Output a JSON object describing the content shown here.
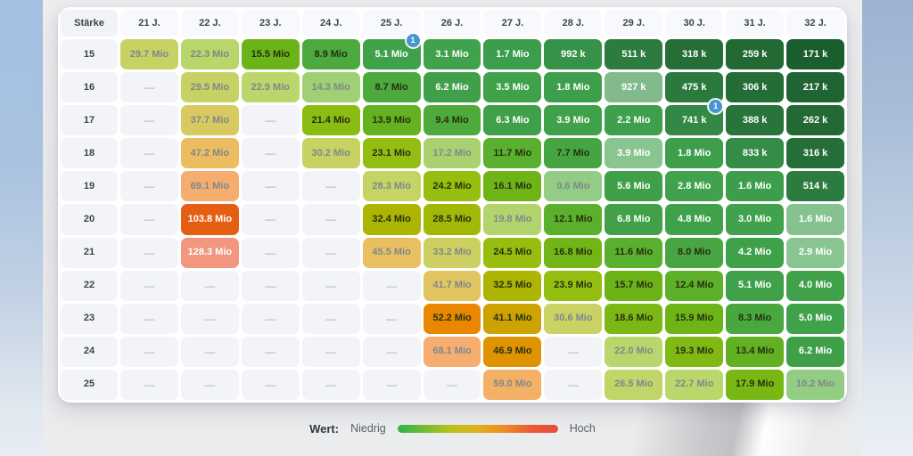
{
  "chart_data": {
    "type": "heatmap",
    "corner_label": "Stärke",
    "columns": [
      "21 J.",
      "22 J.",
      "23 J.",
      "24 J.",
      "25 J.",
      "26 J.",
      "27 J.",
      "28 J.",
      "29 J.",
      "30 J.",
      "31 J.",
      "32 J."
    ],
    "empty_marker": "—",
    "badge_color": "#4795d1",
    "rows": [
      {
        "strength": "15",
        "cells": [
          {
            "v": "29.7 Mio",
            "faded": true
          },
          {
            "v": "22.3 Mio",
            "faded": true
          },
          {
            "v": "15.5 Mio"
          },
          {
            "v": "8.9 Mio"
          },
          {
            "v": "5.1 Mio",
            "badge": "1"
          },
          {
            "v": "3.1 Mio"
          },
          {
            "v": "1.7 Mio"
          },
          {
            "v": "992 k"
          },
          {
            "v": "511 k"
          },
          {
            "v": "318 k"
          },
          {
            "v": "259 k"
          },
          {
            "v": "171 k"
          }
        ]
      },
      {
        "strength": "16",
        "cells": [
          {
            "v": "—"
          },
          {
            "v": "29.5 Mio",
            "faded": true
          },
          {
            "v": "22.9 Mio",
            "faded": true
          },
          {
            "v": "14.3 Mio",
            "faded": true
          },
          {
            "v": "8.7 Mio"
          },
          {
            "v": "6.2 Mio"
          },
          {
            "v": "3.5 Mio"
          },
          {
            "v": "1.8 Mio"
          },
          {
            "v": "927 k",
            "faded": true
          },
          {
            "v": "475 k"
          },
          {
            "v": "306 k"
          },
          {
            "v": "217 k"
          }
        ]
      },
      {
        "strength": "17",
        "cells": [
          {
            "v": "—"
          },
          {
            "v": "37.7 Mio",
            "faded": true
          },
          {
            "v": "—"
          },
          {
            "v": "21.4 Mio"
          },
          {
            "v": "13.9 Mio"
          },
          {
            "v": "9.4 Mio"
          },
          {
            "v": "6.3 Mio"
          },
          {
            "v": "3.9 Mio"
          },
          {
            "v": "2.2 Mio"
          },
          {
            "v": "741 k",
            "badge": "1"
          },
          {
            "v": "388 k"
          },
          {
            "v": "262 k"
          }
        ]
      },
      {
        "strength": "18",
        "cells": [
          {
            "v": "—"
          },
          {
            "v": "47.2 Mio",
            "faded": true
          },
          {
            "v": "—"
          },
          {
            "v": "30.2 Mio",
            "faded": true
          },
          {
            "v": "23.1 Mio"
          },
          {
            "v": "17.2 Mio",
            "faded": true
          },
          {
            "v": "11.7 Mio"
          },
          {
            "v": "7.7 Mio"
          },
          {
            "v": "3.9 Mio",
            "faded": true
          },
          {
            "v": "1.8 Mio"
          },
          {
            "v": "833 k"
          },
          {
            "v": "316 k"
          }
        ]
      },
      {
        "strength": "19",
        "cells": [
          {
            "v": "—"
          },
          {
            "v": "69.1 Mio",
            "faded": true
          },
          {
            "v": "—"
          },
          {
            "v": "—"
          },
          {
            "v": "28.3 Mio",
            "faded": true
          },
          {
            "v": "24.2 Mio"
          },
          {
            "v": "16.1 Mio"
          },
          {
            "v": "9.6 Mio",
            "faded": true
          },
          {
            "v": "5.6 Mio"
          },
          {
            "v": "2.8 Mio"
          },
          {
            "v": "1.6 Mio"
          },
          {
            "v": "514 k"
          }
        ]
      },
      {
        "strength": "20",
        "cells": [
          {
            "v": "—"
          },
          {
            "v": "103.8 Mio"
          },
          {
            "v": "—"
          },
          {
            "v": "—"
          },
          {
            "v": "32.4 Mio"
          },
          {
            "v": "28.5 Mio"
          },
          {
            "v": "19.8 Mio",
            "faded": true
          },
          {
            "v": "12.1 Mio"
          },
          {
            "v": "6.8 Mio"
          },
          {
            "v": "4.8 Mio"
          },
          {
            "v": "3.0 Mio"
          },
          {
            "v": "1.6 Mio",
            "faded": true
          }
        ]
      },
      {
        "strength": "21",
        "cells": [
          {
            "v": "—"
          },
          {
            "v": "128.3 Mio",
            "faded": true
          },
          {
            "v": "—"
          },
          {
            "v": "—"
          },
          {
            "v": "45.5 Mio",
            "faded": true
          },
          {
            "v": "33.2 Mio",
            "faded": true
          },
          {
            "v": "24.5 Mio"
          },
          {
            "v": "16.8 Mio"
          },
          {
            "v": "11.6 Mio"
          },
          {
            "v": "8.0 Mio"
          },
          {
            "v": "4.2 Mio"
          },
          {
            "v": "2.9 Mio",
            "faded": true
          }
        ]
      },
      {
        "strength": "22",
        "cells": [
          {
            "v": "—"
          },
          {
            "v": "—"
          },
          {
            "v": "—"
          },
          {
            "v": "—"
          },
          {
            "v": "—"
          },
          {
            "v": "41.7 Mio",
            "faded": true
          },
          {
            "v": "32.5 Mio"
          },
          {
            "v": "23.9 Mio"
          },
          {
            "v": "15.7 Mio"
          },
          {
            "v": "12.4 Mio"
          },
          {
            "v": "5.1 Mio"
          },
          {
            "v": "4.0 Mio"
          }
        ]
      },
      {
        "strength": "23",
        "cells": [
          {
            "v": "—"
          },
          {
            "v": "—"
          },
          {
            "v": "—"
          },
          {
            "v": "—"
          },
          {
            "v": "—"
          },
          {
            "v": "52.2 Mio"
          },
          {
            "v": "41.1 Mio"
          },
          {
            "v": "30.6 Mio",
            "faded": true
          },
          {
            "v": "18.6 Mio"
          },
          {
            "v": "15.9 Mio"
          },
          {
            "v": "8.3 Mio"
          },
          {
            "v": "5.0 Mio"
          }
        ]
      },
      {
        "strength": "24",
        "cells": [
          {
            "v": "—"
          },
          {
            "v": "—"
          },
          {
            "v": "—"
          },
          {
            "v": "—"
          },
          {
            "v": "—"
          },
          {
            "v": "68.1 Mio",
            "faded": true
          },
          {
            "v": "46.9 Mio"
          },
          {
            "v": "—"
          },
          {
            "v": "22.0 Mio",
            "faded": true
          },
          {
            "v": "19.3 Mio"
          },
          {
            "v": "13.4 Mio"
          },
          {
            "v": "6.2 Mio"
          }
        ]
      },
      {
        "strength": "25",
        "cells": [
          {
            "v": "—"
          },
          {
            "v": "—"
          },
          {
            "v": "—"
          },
          {
            "v": "—"
          },
          {
            "v": "—"
          },
          {
            "v": "—"
          },
          {
            "v": "59.0 Mio",
            "faded": true
          },
          {
            "v": "—"
          },
          {
            "v": "26.5 Mio",
            "faded": true
          },
          {
            "v": "22.7 Mio",
            "faded": true
          },
          {
            "v": "17.9 Mio"
          },
          {
            "v": "10.2 Mio",
            "faded": true
          }
        ]
      }
    ],
    "legend": {
      "label": "Wert:",
      "low": "Niedrig",
      "high": "Hoch",
      "gradient": [
        "#2fb34c",
        "#74bb31",
        "#b9c31a",
        "#e2ad1e",
        "#ee8b27",
        "#ea5a35",
        "#e84c3a"
      ]
    }
  }
}
